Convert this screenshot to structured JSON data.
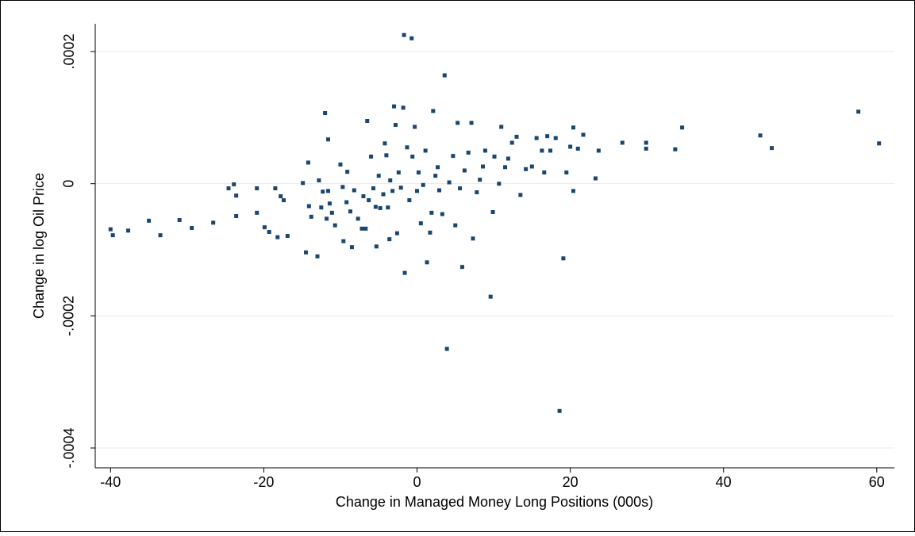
{
  "chart_data": {
    "type": "scatter",
    "x_label": "Change in Managed Money Long Positions (000s)",
    "y_label": "Change in log Oil Price",
    "color": "#1a476f",
    "grid": true,
    "xlim": [
      -42,
      62.3
    ],
    "ylim": [
      -0.00043,
      0.000242
    ],
    "xticks": [
      -40,
      -20,
      0,
      20,
      40,
      60
    ],
    "yticks": [
      {
        "value": -0.0004,
        "label": "-.0004"
      },
      {
        "value": -0.0002,
        "label": "-.0002"
      },
      0,
      {
        "value": 0.0002,
        "label": ".0002"
      }
    ],
    "x": [
      -40,
      -39.7,
      -37.7,
      -35,
      -33.5,
      -31,
      -29.4,
      -26.6,
      -24.6,
      -23.9,
      -23.6,
      -23.6,
      -20.9,
      -20.9,
      -19.9,
      -19.3,
      -18.5,
      -18.2,
      -17.8,
      -17.4,
      -16.9,
      -14.9,
      -14.5,
      -14.2,
      -14.1,
      -13.8,
      -13,
      -12.8,
      -12.5,
      -12.3,
      -12,
      -11.8,
      -11.6,
      -11.6,
      -11.4,
      -11.1,
      -10.7,
      -10,
      -9.7,
      -9.6,
      -9.2,
      -9.1,
      -8.7,
      -8.5,
      -8.2,
      -7.7,
      -7.2,
      -7,
      -6.7,
      -6.5,
      -6.3,
      -6,
      -5.7,
      -5.4,
      -5.3,
      -5,
      -4.8,
      -4.4,
      -4.2,
      -4,
      -3.8,
      -3.6,
      -3.5,
      -3.2,
      -3,
      -2.8,
      -2.6,
      -2.4,
      -2.1,
      -1.8,
      -1.7,
      -1.6,
      -1.3,
      -1,
      -0.7,
      -0.6,
      -0.3,
      0,
      0.2,
      0.5,
      0.8,
      1.1,
      1.3,
      1.7,
      1.9,
      2.1,
      2.4,
      2.7,
      2.9,
      3.3,
      3.6,
      3.9,
      4.2,
      4.7,
      5,
      5.3,
      5.6,
      5.9,
      6.2,
      6.7,
      7.1,
      7.3,
      7.8,
      8.2,
      8.6,
      8.9,
      9.6,
      9.9,
      10.1,
      10.7,
      11,
      11.5,
      11.9,
      12.4,
      13,
      13.5,
      14.2,
      15,
      15.6,
      16.3,
      16.6,
      17,
      17.4,
      18.1,
      18.6,
      19.1,
      19.5,
      20,
      20.4,
      20.4,
      21,
      21.7,
      23.3,
      23.7,
      26.8,
      29.9,
      29.9,
      33.7,
      34.6,
      44.8,
      46.3,
      57.6,
      60.3
    ],
    "y": [
      -6.9e-05,
      -7.8e-05,
      -7.1e-05,
      -5.6e-05,
      -7.8e-05,
      -5.5e-05,
      -6.7e-05,
      -5.9e-05,
      -7e-06,
      -1e-06,
      -1.8e-05,
      -4.9e-05,
      -7e-06,
      -4.4e-05,
      -6.6e-05,
      -7.3e-05,
      -7e-06,
      -8.1e-05,
      -1.9e-05,
      -2.5e-05,
      -7.9e-05,
      1e-06,
      -0.000104,
      3.2e-05,
      -3.4e-05,
      -5e-05,
      -0.00011,
      5e-06,
      -3.6e-05,
      -1.2e-05,
      0.000107,
      -5.3e-05,
      6.7e-05,
      -1.1e-05,
      -3e-05,
      -4.4e-05,
      -6.3e-05,
      2.9e-05,
      -5e-06,
      -8.7e-05,
      -2.8e-05,
      1.8e-05,
      -4.2e-05,
      -9.6e-05,
      -1e-05,
      -5.3e-05,
      -6.8e-05,
      -1.9e-05,
      -6.8e-05,
      9.5e-05,
      -2.5e-05,
      4.1e-05,
      -7e-06,
      -3.5e-05,
      -9.5e-05,
      1.2e-05,
      -3.7e-05,
      -1.6e-05,
      6.1e-05,
      4.3e-05,
      -3.6e-05,
      -8.4e-05,
      5e-06,
      -1.1e-05,
      0.000117,
      8.9e-05,
      -7.5e-05,
      1.7e-05,
      -6e-06,
      0.000115,
      0.000225,
      -0.000135,
      5.5e-05,
      -2.5e-05,
      0.00022,
      4.1e-05,
      8.6e-05,
      -1.1e-05,
      1.7e-05,
      -6e-05,
      -2e-06,
      5e-05,
      -0.000119,
      -7.4e-05,
      -4.4e-05,
      0.00011,
      1.2e-05,
      2.5e-05,
      -1e-05,
      -4.6e-05,
      0.000164,
      -0.00025,
      2e-06,
      4.2e-05,
      -6.3e-05,
      9.2e-05,
      -7e-06,
      -0.000126,
      2e-05,
      4.7e-05,
      9.2e-05,
      -8.3e-05,
      -1.3e-05,
      6e-06,
      2.6e-05,
      5e-05,
      -0.000171,
      -4.3e-05,
      4.1e-05,
      0,
      8.6e-05,
      2.5e-05,
      3.8e-05,
      6.2e-05,
      7.1e-05,
      -1.7e-05,
      2.2e-05,
      2.6e-05,
      6.9e-05,
      5e-05,
      1.7e-05,
      7.2e-05,
      5e-05,
      6.9e-05,
      -0.000344,
      -0.000113,
      1.7e-05,
      5.6e-05,
      8.5e-05,
      -1.1e-05,
      5.3e-05,
      7.4e-05,
      8e-06,
      5e-05,
      6.2e-05,
      6.2e-05,
      5.3e-05,
      5.2e-05,
      8.5e-05,
      7.3e-05,
      5.4e-05,
      0.000109,
      6.1e-05
    ]
  }
}
